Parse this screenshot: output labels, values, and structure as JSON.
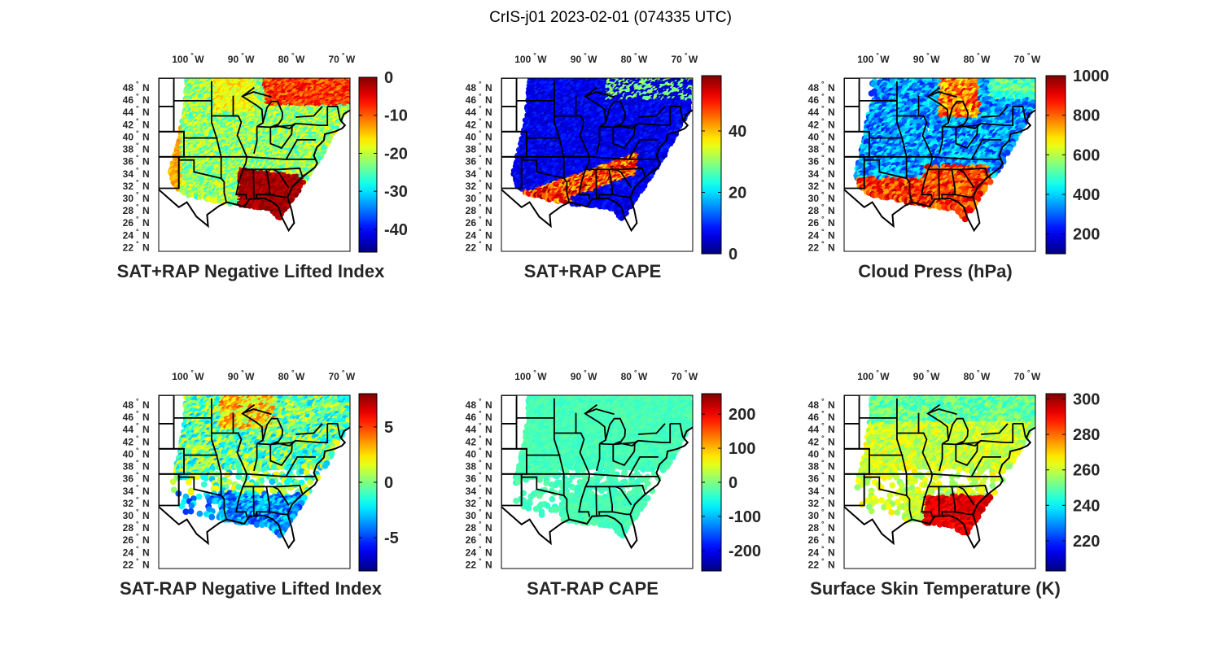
{
  "figure": {
    "title": "CrIS-j01 2023-02-01 (074335 UTC)"
  },
  "axes": {
    "lon_labels": [
      "100",
      "90",
      "80",
      "70"
    ],
    "lon_suffix": "W",
    "lat_labels": [
      "48",
      "46",
      "44",
      "42",
      "40",
      "38",
      "36",
      "34",
      "32",
      "30",
      "28",
      "26",
      "24",
      "22"
    ],
    "lat_suffix": "N",
    "degree_symbol": "°"
  },
  "chart_data": [
    {
      "type": "heatmap",
      "title": "SAT+RAP Negative Lifted Index",
      "colormap": "jet",
      "colorbar_range": [
        -46,
        0
      ],
      "colorbar_ticks": [
        "0",
        "-10",
        "-20",
        "-30",
        "-40"
      ],
      "pattern": "li_plus"
    },
    {
      "type": "heatmap",
      "title": "SAT+RAP CAPE",
      "colormap": "jet",
      "colorbar_range": [
        0,
        58
      ],
      "colorbar_ticks": [
        "40",
        "20",
        "0"
      ],
      "pattern": "cape_plus"
    },
    {
      "type": "heatmap",
      "title": "Cloud Press (hPa)",
      "colormap": "jet",
      "colorbar_range": [
        100,
        1000
      ],
      "colorbar_ticks": [
        "1000",
        "800",
        "600",
        "400",
        "200"
      ],
      "pattern": "cloud"
    },
    {
      "type": "heatmap",
      "title": "SAT-RAP Negative Lifted Index",
      "colormap": "jet",
      "colorbar_range": [
        -8,
        8
      ],
      "colorbar_ticks": [
        "5",
        "0",
        "-5"
      ],
      "pattern": "li_minus"
    },
    {
      "type": "heatmap",
      "title": "SAT-RAP CAPE",
      "colormap": "jet",
      "colorbar_range": [
        -260,
        260
      ],
      "colorbar_ticks": [
        "200",
        "100",
        "0",
        "-100",
        "-200"
      ],
      "pattern": "cape_minus"
    },
    {
      "type": "heatmap",
      "title": "Surface Skin Temperature (K)",
      "colormap": "jet",
      "colorbar_range": [
        203,
        303
      ],
      "colorbar_ticks": [
        "300",
        "280",
        "260",
        "240",
        "220"
      ],
      "pattern": "skin"
    }
  ],
  "colors": {
    "axis": "#000000",
    "state_lines": "#000000"
  }
}
